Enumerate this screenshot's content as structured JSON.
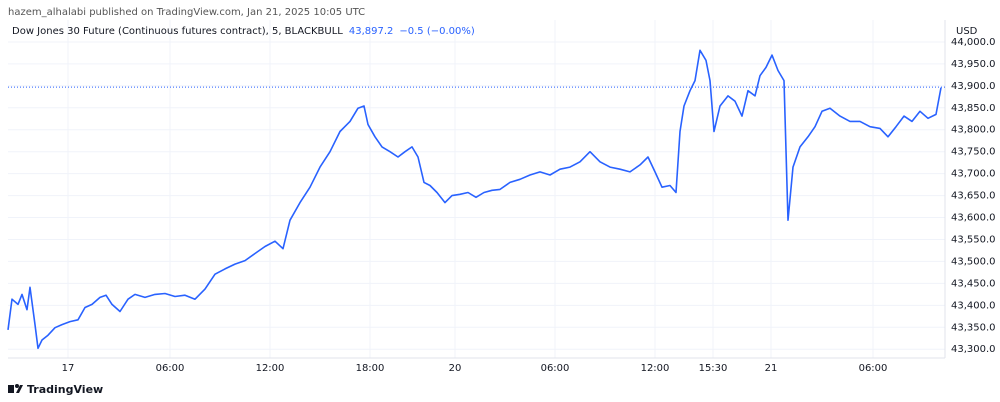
{
  "chart_data": {
    "type": "line",
    "published": "hazem_alhalabi published on TradingView.com, Jan 21, 2025 10:05 UTC",
    "title": "Dow Jones 30 Future (Continuous futures contract), 5, BLACKBULL",
    "last_value": 43897.2,
    "last_value_label": "43,897.2",
    "change_label": "−0.5 (−0.00%)",
    "currency": "USD",
    "brand": "TradingView",
    "color": "#2962ff",
    "grid": true,
    "xlim": [
      0,
      937
    ],
    "ylim": [
      43280,
      44050
    ],
    "xticks": [
      {
        "value": 60,
        "label": "17"
      },
      {
        "value": 162,
        "label": "06:00"
      },
      {
        "value": 262,
        "label": "12:00"
      },
      {
        "value": 362,
        "label": "18:00"
      },
      {
        "value": 447,
        "label": "20"
      },
      {
        "value": 547,
        "label": "06:00"
      },
      {
        "value": 647,
        "label": "12:00"
      },
      {
        "value": 705,
        "label": "15:30"
      },
      {
        "value": 763,
        "label": "21"
      },
      {
        "value": 865,
        "label": "06:00"
      }
    ],
    "yticks": [
      {
        "value": 43300,
        "label": "43,300.0"
      },
      {
        "value": 43350,
        "label": "43,350.0"
      },
      {
        "value": 43400,
        "label": "43,400.0"
      },
      {
        "value": 43450,
        "label": "43,450.0"
      },
      {
        "value": 43500,
        "label": "43,500.0"
      },
      {
        "value": 43550,
        "label": "43,550.0"
      },
      {
        "value": 43600,
        "label": "43,600.0"
      },
      {
        "value": 43650,
        "label": "43,650.0"
      },
      {
        "value": 43700,
        "label": "43,700.0"
      },
      {
        "value": 43750,
        "label": "43,750.0"
      },
      {
        "value": 43800,
        "label": "43,800.0"
      },
      {
        "value": 43850,
        "label": "43,850.0"
      },
      {
        "value": 43900,
        "label": "43,900.0"
      },
      {
        "value": 43950,
        "label": "43,950.0"
      },
      {
        "value": 44000,
        "label": "44,000.0"
      }
    ],
    "x": [
      0,
      4,
      10,
      14,
      19,
      22,
      27,
      30,
      34,
      40,
      47,
      54,
      62,
      70,
      77,
      84,
      92,
      98,
      104,
      112,
      120,
      127,
      137,
      147,
      157,
      167,
      177,
      187,
      197,
      207,
      217,
      227,
      237,
      247,
      257,
      267,
      275,
      282,
      292,
      302,
      312,
      322,
      332,
      342,
      350,
      356,
      360,
      367,
      374,
      382,
      390,
      397,
      404,
      410,
      416,
      422,
      429,
      437,
      444,
      452,
      460,
      468,
      476,
      484,
      492,
      502,
      512,
      522,
      532,
      542,
      552,
      562,
      572,
      582,
      592,
      602,
      612,
      622,
      632,
      640,
      647,
      654,
      662,
      668,
      672,
      676,
      682,
      687,
      692,
      698,
      702,
      706,
      712,
      720,
      727,
      734,
      740,
      747,
      752,
      758,
      764,
      770,
      776,
      780,
      785,
      792,
      800,
      807,
      814,
      822,
      832,
      842,
      852,
      862,
      872,
      880,
      888,
      896,
      904,
      912,
      920,
      928,
      933
    ],
    "values": [
      43344,
      43414,
      43402,
      43425,
      43390,
      43441,
      43356,
      43302,
      43321,
      43332,
      43349,
      43356,
      43363,
      43367,
      43395,
      43402,
      43418,
      43423,
      43402,
      43386,
      43414,
      43425,
      43418,
      43425,
      43427,
      43420,
      43423,
      43414,
      43437,
      43471,
      43483,
      43494,
      43502,
      43518,
      43534,
      43546,
      43529,
      43594,
      43634,
      43669,
      43715,
      43750,
      43796,
      43819,
      43849,
      43854,
      43812,
      43784,
      43761,
      43750,
      43738,
      43750,
      43761,
      43738,
      43680,
      43673,
      43657,
      43634,
      43650,
      43653,
      43657,
      43646,
      43657,
      43662,
      43664,
      43680,
      43687,
      43697,
      43704,
      43697,
      43710,
      43715,
      43727,
      43750,
      43727,
      43715,
      43710,
      43704,
      43720,
      43738,
      43704,
      43669,
      43673,
      43657,
      43796,
      43854,
      43889,
      43912,
      43981,
      43958,
      43912,
      43796,
      43854,
      43877,
      43865,
      43831,
      43889,
      43877,
      43923,
      43942,
      43970,
      43935,
      43912,
      43594,
      43715,
      43761,
      43784,
      43807,
      43842,
      43849,
      43831,
      43819,
      43819,
      43807,
      43803,
      43784,
      43807,
      43831,
      43819,
      43842,
      43826,
      43835,
      43896
    ]
  }
}
